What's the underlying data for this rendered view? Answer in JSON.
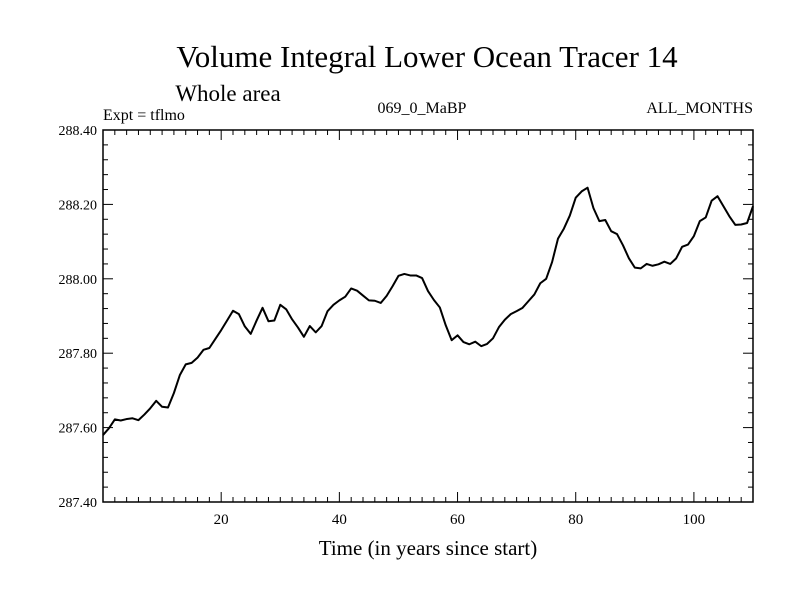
{
  "chart_data": {
    "type": "line",
    "title": "Volume Integral Lower Ocean Tracer 14",
    "subtitle": "Whole area",
    "left_label": "Expt = tflmo",
    "center_label": "069_0_MaBP",
    "right_label": "ALL_MONTHS",
    "xlabel": "Time (in years since start)",
    "ylabel": "",
    "xlim": [
      0,
      110
    ],
    "ylim": [
      287.4,
      288.4
    ],
    "x_ticks": [
      20,
      40,
      60,
      80,
      100
    ],
    "x_tick_labels": [
      "20",
      "40",
      "60",
      "80",
      "100"
    ],
    "y_ticks": [
      287.4,
      287.6,
      287.8,
      288.0,
      288.2,
      288.4
    ],
    "y_tick_labels": [
      "287.40",
      "287.60",
      "287.80",
      "288.00",
      "288.20",
      "288.40"
    ],
    "grid": false,
    "series": [
      {
        "name": "Tracer 14",
        "x": [
          0,
          1,
          2,
          3,
          4,
          5,
          6,
          7,
          8,
          9,
          10,
          11,
          12,
          13,
          14,
          15,
          16,
          17,
          18,
          19,
          20,
          21,
          22,
          23,
          24,
          25,
          26,
          27,
          28,
          29,
          30,
          31,
          32,
          33,
          34,
          35,
          36,
          37,
          38,
          39,
          40,
          41,
          42,
          43,
          44,
          45,
          46,
          47,
          48,
          49,
          50,
          51,
          52,
          53,
          54,
          55,
          56,
          57,
          58,
          59,
          60,
          61,
          62,
          63,
          64,
          65,
          66,
          67,
          68,
          69,
          70,
          71,
          72,
          73,
          74,
          75,
          76,
          77,
          78,
          79,
          80,
          81,
          82,
          83,
          84,
          85,
          86,
          87,
          88,
          89,
          90,
          91,
          92,
          93,
          94,
          95,
          96,
          97,
          98,
          99,
          100,
          101,
          102,
          103,
          104,
          105,
          106,
          107,
          108,
          109,
          110
        ],
        "values": [
          287.58,
          287.598,
          287.622,
          287.619,
          287.623,
          287.625,
          287.62,
          287.635,
          287.652,
          287.672,
          287.656,
          287.654,
          287.693,
          287.741,
          287.77,
          287.774,
          287.788,
          287.809,
          287.814,
          287.838,
          287.862,
          287.888,
          287.914,
          287.905,
          287.872,
          287.852,
          287.888,
          287.922,
          287.886,
          287.888,
          287.93,
          287.918,
          287.891,
          287.869,
          287.844,
          287.873,
          287.856,
          287.873,
          287.913,
          287.93,
          287.942,
          287.952,
          287.974,
          287.968,
          287.955,
          287.942,
          287.941,
          287.935,
          287.954,
          287.98,
          288.008,
          288.013,
          288.009,
          288.009,
          288.002,
          287.967,
          287.943,
          287.923,
          287.875,
          287.835,
          287.848,
          287.83,
          287.824,
          287.831,
          287.819,
          287.825,
          287.84,
          287.87,
          287.89,
          287.905,
          287.913,
          287.922,
          287.94,
          287.958,
          287.988,
          288.0,
          288.045,
          288.108,
          288.135,
          288.17,
          288.218,
          288.235,
          288.245,
          288.19,
          288.155,
          288.158,
          288.128,
          288.12,
          288.09,
          288.055,
          288.03,
          288.028,
          288.04,
          288.035,
          288.039,
          288.046,
          288.04,
          288.055,
          288.086,
          288.092,
          288.115,
          288.155,
          288.165,
          288.21,
          288.222,
          288.195,
          288.168,
          288.145,
          288.146,
          288.15,
          288.195
        ]
      }
    ]
  }
}
